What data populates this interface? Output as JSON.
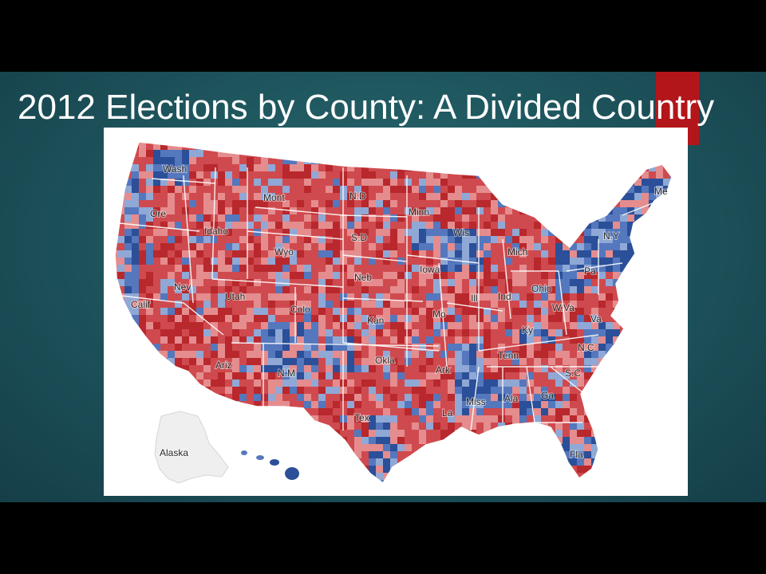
{
  "slide": {
    "title": "2012 Elections by County: A Divided Country",
    "colors": {
      "background": "#1f575f",
      "accent": "#b3161a",
      "title_text": "#ffffff"
    }
  },
  "map": {
    "colors": {
      "republican_strong": "#b8282c",
      "republican": "#cf4a4e",
      "republican_lean": "#e58c8e",
      "democrat_lean": "#8fa8d6",
      "democrat": "#5477bd",
      "democrat_strong": "#2b4f98",
      "land_empty": "#f0f0f0",
      "border": "#ffffff"
    },
    "labels": {
      "wash": "Wash",
      "ore": "Ore",
      "calif": "Calif",
      "nev": "Nev",
      "idaho": "Idaho",
      "mont": "Mont",
      "wyo": "Wyo",
      "utah": "Utah",
      "ariz": "Ariz",
      "colo": "Colo",
      "nm": "N.M",
      "nd": "N.D",
      "sd": "S.D",
      "neb": "Neb",
      "kan": "Kan",
      "okla": "Okla",
      "tex": "Tex",
      "minn": "Minn",
      "iowa": "Iowa",
      "mo": "Mo",
      "ark": "Ark",
      "la": "La",
      "wis": "Wis",
      "ill": "Ill",
      "mich": "Mich",
      "ind": "Ind",
      "ohio": "Ohio",
      "ky": "Ky",
      "tenn": "Tenn",
      "miss": "Miss",
      "ala": "Ala",
      "ga": "Ga",
      "fla": "Fla",
      "sc": "S.C",
      "nc": "N.C",
      "va": "Va",
      "wva": "W.Va",
      "pa": "Pa",
      "ny": "N.Y",
      "me": "Me",
      "alaska": "Alaska"
    }
  }
}
